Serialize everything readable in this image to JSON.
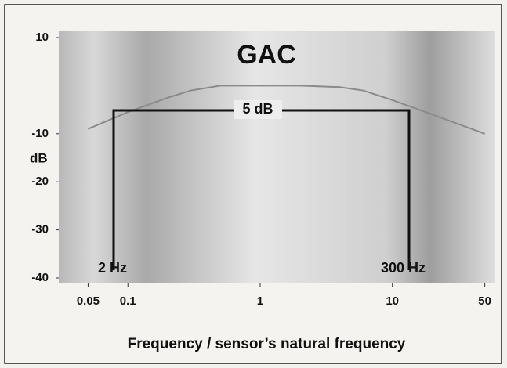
{
  "chart_data": {
    "type": "line",
    "title": "GAC",
    "x": [
      0.05,
      0.1,
      0.2,
      0.3,
      0.5,
      1,
      2,
      4,
      6,
      10,
      20,
      50
    ],
    "series": [
      {
        "name": "GAC",
        "color": "#8a8a8a",
        "values": [
          -9,
          -5.5,
          -2.5,
          -1,
          0,
          0,
          0,
          -0.3,
          -1,
          -3,
          -6,
          -10
        ]
      }
    ],
    "xlim": [
      0.03,
      60
    ],
    "xscale": "log",
    "xticks": [
      0.05,
      0.1,
      1,
      10,
      50
    ],
    "ylim": [
      -40,
      10
    ],
    "yticks": [
      -40,
      -30,
      -20,
      -10,
      10
    ],
    "ylabel": "dB",
    "xlabel": "Frequency / sensor’s natural frequency",
    "annotations": [
      "5 dB",
      "2 Hz",
      "300 Hz"
    ]
  }
}
